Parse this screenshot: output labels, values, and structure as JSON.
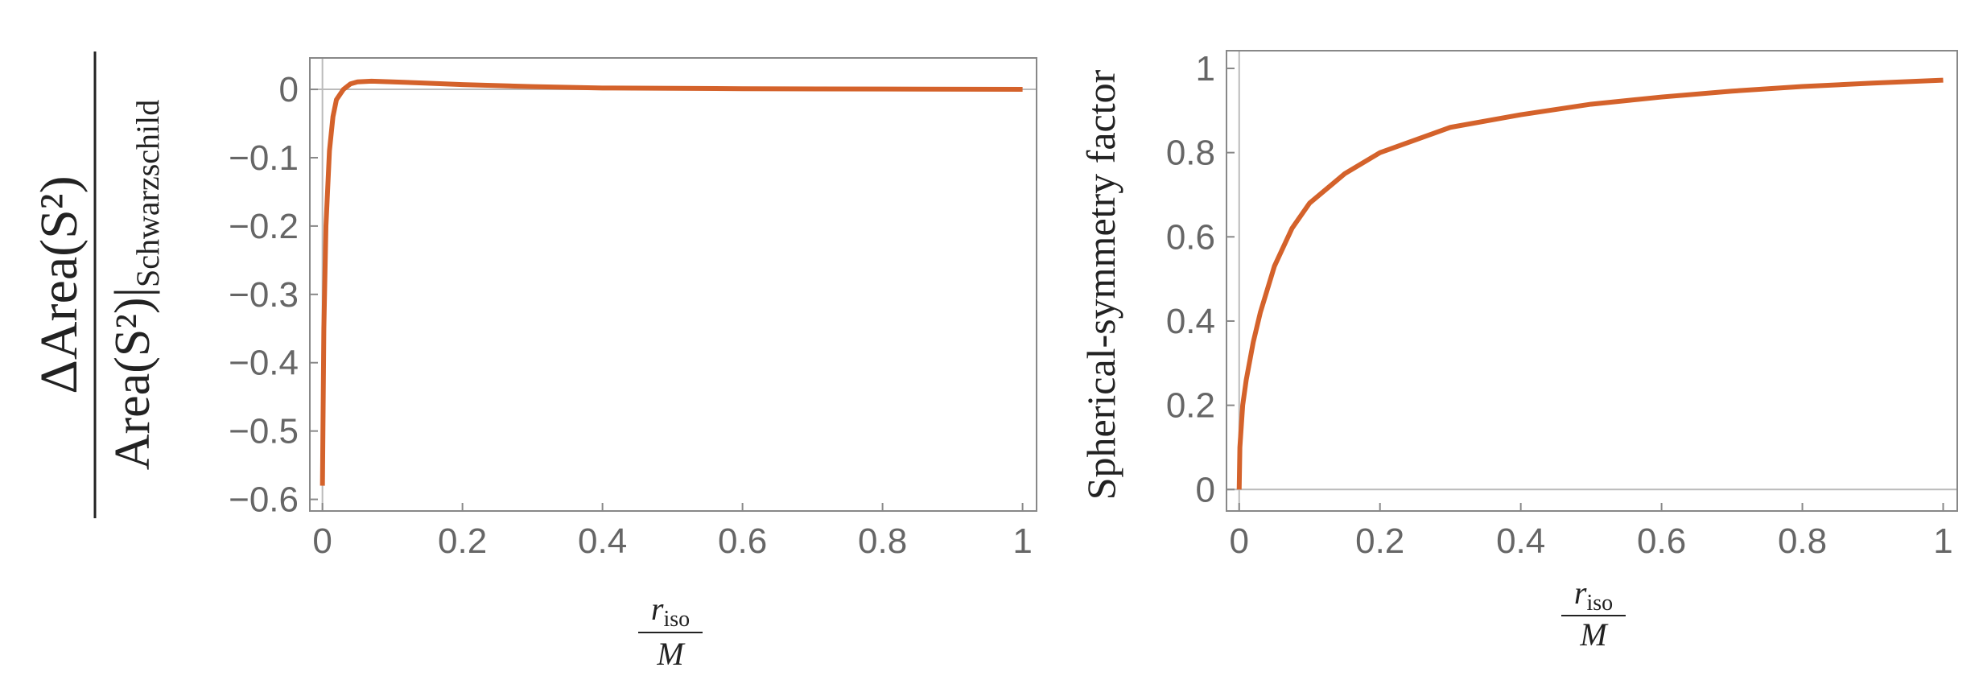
{
  "chart_data": [
    {
      "type": "line",
      "x_label": {
        "numerator": "r",
        "numerator_subscript": "iso",
        "denominator": "M"
      },
      "y_label": {
        "numerator": "ΔArea(S²)",
        "denominator": "Area(S²)|",
        "denominator_subscript": "Schwarzschild"
      },
      "x": [
        0,
        0.002,
        0.005,
        0.01,
        0.015,
        0.02,
        0.03,
        0.04,
        0.05,
        0.07,
        0.1,
        0.15,
        0.2,
        0.3,
        0.4,
        0.6,
        0.8,
        1
      ],
      "series": [
        {
          "color": "#d4622b",
          "values": [
            -0.58,
            -0.35,
            -0.2,
            -0.09,
            -0.04,
            -0.015,
            0.0,
            0.008,
            0.011,
            0.012,
            0.011,
            0.009,
            0.007,
            0.004,
            0.002,
            0.001,
            0.0005,
            0
          ]
        }
      ],
      "xlim": [
        -0.018,
        1.02
      ],
      "ylim": [
        -0.617,
        0.046
      ],
      "xticks": [
        0,
        0.2,
        0.4,
        0.6,
        0.8,
        1
      ],
      "yticks": [
        0,
        {
          "value": -0.1,
          "label": "−0.1"
        },
        {
          "value": -0.2,
          "label": "−0.2"
        },
        {
          "value": -0.3,
          "label": "−0.3"
        },
        {
          "value": -0.4,
          "label": "−0.4"
        },
        {
          "value": -0.5,
          "label": "−0.5"
        },
        {
          "value": -0.6,
          "label": "−0.6"
        }
      ]
    },
    {
      "type": "line",
      "x_label": {
        "numerator": "r",
        "numerator_subscript": "iso",
        "denominator": "M"
      },
      "y_label": {
        "text": "Spherical-symmetry factor"
      },
      "x": [
        0,
        0.001,
        0.005,
        0.01,
        0.02,
        0.03,
        0.05,
        0.075,
        0.1,
        0.15,
        0.2,
        0.3,
        0.4,
        0.5,
        0.6,
        0.7,
        0.8,
        0.9,
        1
      ],
      "series": [
        {
          "color": "#d4622b",
          "values": [
            0,
            0.1,
            0.2,
            0.26,
            0.35,
            0.42,
            0.53,
            0.62,
            0.68,
            0.75,
            0.8,
            0.86,
            0.89,
            0.915,
            0.932,
            0.946,
            0.957,
            0.965,
            0.972
          ]
        }
      ],
      "xlim": [
        -0.018,
        1.02
      ],
      "ylim": [
        -0.051,
        1.042
      ],
      "xticks": [
        0,
        0.2,
        0.4,
        0.6,
        0.8,
        1
      ],
      "yticks": [
        0,
        0.2,
        0.4,
        0.6,
        0.8,
        1
      ]
    }
  ]
}
